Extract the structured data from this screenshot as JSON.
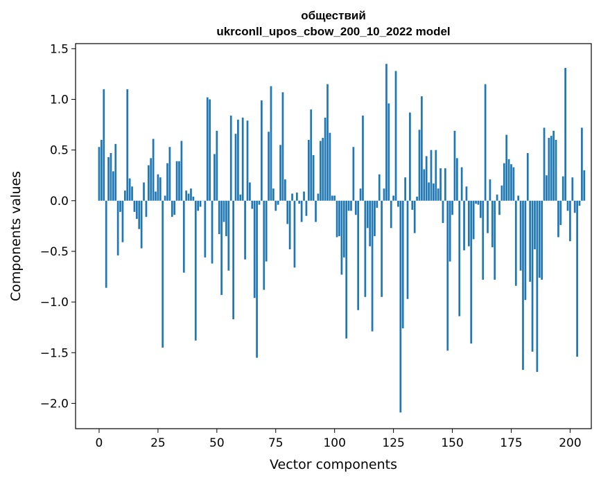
{
  "chart_data": {
    "type": "bar",
    "title": "обществий",
    "subtitle": "ukrconll_upos_cbow_200_10_2022 model",
    "xlabel": "Vector components",
    "ylabel": "Components values",
    "xlim": [
      -10,
      209
    ],
    "ylim": [
      -2.25,
      1.55
    ],
    "xticks": [
      0,
      25,
      50,
      75,
      100,
      125,
      150,
      175,
      200
    ],
    "yticks": [
      -2.0,
      -1.5,
      -1.0,
      -0.5,
      0.0,
      0.5,
      1.0,
      1.5
    ],
    "ytick_labels": [
      "−2.0",
      "−1.5",
      "−1.0",
      "−0.5",
      "0.0",
      "0.5",
      "1.0",
      "1.5"
    ],
    "bar_color": "#1f77b4",
    "grid": false,
    "values": [
      0.53,
      0.6,
      1.1,
      -0.86,
      0.43,
      0.47,
      0.29,
      0.56,
      -0.54,
      -0.11,
      -0.41,
      0.1,
      1.1,
      0.22,
      0.14,
      -0.11,
      -0.18,
      -0.28,
      -0.47,
      0.18,
      -0.16,
      0.35,
      0.42,
      0.61,
      0.09,
      0.26,
      0.23,
      -1.45,
      0.05,
      0.37,
      0.53,
      -0.16,
      -0.14,
      0.39,
      0.39,
      0.59,
      -0.71,
      0.1,
      0.07,
      0.12,
      0.04,
      -1.38,
      -0.1,
      -0.06,
      0.0,
      -0.56,
      1.02,
      1.0,
      -0.62,
      0.46,
      0.69,
      -0.33,
      -0.93,
      -0.21,
      -0.35,
      -0.69,
      0.84,
      -1.17,
      0.66,
      0.8,
      0.06,
      0.82,
      -0.58,
      0.79,
      0.18,
      -0.08,
      -0.96,
      -1.55,
      -0.04,
      0.99,
      -0.88,
      -0.6,
      0.68,
      1.13,
      0.12,
      -0.1,
      -0.04,
      0.55,
      1.07,
      0.21,
      -0.23,
      -0.48,
      0.07,
      -0.66,
      0.08,
      -0.03,
      -0.21,
      0.09,
      -0.15,
      0.6,
      0.9,
      0.45,
      -0.21,
      0.07,
      0.59,
      0.62,
      0.82,
      1.15,
      0.67,
      0.05,
      0.05,
      -0.36,
      -0.35,
      -0.73,
      -0.56,
      -1.36,
      -0.1,
      -0.1,
      0.53,
      -0.14,
      -1.08,
      0.12,
      0.84,
      -0.95,
      -0.27,
      -0.45,
      -1.29,
      -0.35,
      -0.07,
      0.26,
      -0.95,
      0.12,
      1.35,
      0.96,
      -0.27,
      0.05,
      1.28,
      -0.06,
      -2.09,
      -1.26,
      0.23,
      -0.97,
      0.87,
      -0.09,
      -0.32,
      0.04,
      0.7,
      1.03,
      0.31,
      0.44,
      0.18,
      0.5,
      0.17,
      0.5,
      0.12,
      0.32,
      -0.22,
      0.32,
      -1.48,
      -0.6,
      -0.14,
      0.69,
      0.42,
      -1.14,
      0.33,
      -0.49,
      0.14,
      -0.45,
      -1.41,
      -0.38,
      -0.03,
      -0.04,
      -0.17,
      -0.78,
      1.15,
      -0.32,
      0.21,
      -0.46,
      -0.78,
      0.06,
      -0.14,
      0.15,
      0.37,
      0.65,
      0.41,
      0.36,
      0.33,
      -0.84,
      0.05,
      -0.69,
      -1.67,
      -0.98,
      0.47,
      -0.8,
      -1.49,
      -0.48,
      -1.69,
      -0.76,
      -0.78,
      0.72,
      0.25,
      0.62,
      0.64,
      0.69,
      0.6,
      -0.36,
      -0.24,
      0.24,
      1.31,
      -0.1,
      -0.4,
      0.23,
      -0.12,
      -1.54,
      -0.05,
      0.72,
      0.3
    ]
  }
}
